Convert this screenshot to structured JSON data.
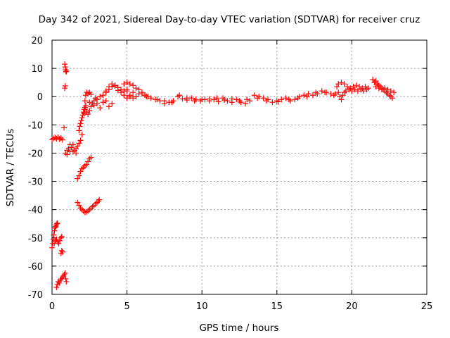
{
  "chart_data": {
    "type": "scatter",
    "title": "Day 342 of 2021, Sidereal Day-to-day VTEC variation (SDTVAR) for receiver cruz",
    "xlabel": "GPS time / hours",
    "ylabel": "SDTVAR / TECUs",
    "xlim": [
      0,
      25
    ],
    "ylim": [
      -70,
      20
    ],
    "xticks": [
      0,
      5,
      10,
      15,
      20,
      25
    ],
    "yticks": [
      20,
      10,
      0,
      -10,
      -20,
      -30,
      -40,
      -50,
      -60,
      -70
    ],
    "grid": true,
    "marker": "plus",
    "marker_color": "#ff0000",
    "series": [
      {
        "name": "SDTVAR",
        "points": [
          [
            0.0,
            -15.2
          ],
          [
            0.1,
            -14.8
          ],
          [
            0.2,
            -14.5
          ],
          [
            0.3,
            -14.9
          ],
          [
            0.4,
            -14.4
          ],
          [
            0.5,
            -15.0
          ],
          [
            0.6,
            -14.7
          ],
          [
            0.7,
            -15.3
          ],
          [
            0.0,
            -53.5
          ],
          [
            0.04,
            -52.0
          ],
          [
            0.08,
            -50.5
          ],
          [
            0.12,
            -49.0
          ],
          [
            0.16,
            -47.5
          ],
          [
            0.2,
            -46.5
          ],
          [
            0.24,
            -46.0
          ],
          [
            0.28,
            -45.5
          ],
          [
            0.32,
            -45.0
          ],
          [
            0.36,
            -44.8
          ],
          [
            0.15,
            -52.0
          ],
          [
            0.22,
            -51.0
          ],
          [
            0.3,
            -50.5
          ],
          [
            0.38,
            -51.5
          ],
          [
            0.45,
            -52.0
          ],
          [
            0.52,
            -51.0
          ],
          [
            0.6,
            -50.0
          ],
          [
            0.65,
            -49.5
          ],
          [
            0.3,
            -67.5
          ],
          [
            0.36,
            -66.5
          ],
          [
            0.42,
            -65.5
          ],
          [
            0.48,
            -66.0
          ],
          [
            0.55,
            -65.0
          ],
          [
            0.62,
            -64.5
          ],
          [
            0.7,
            -64.0
          ],
          [
            0.75,
            -63.5
          ],
          [
            0.82,
            -63.0
          ],
          [
            0.88,
            -62.5
          ],
          [
            0.92,
            -64.5
          ],
          [
            0.95,
            -65.5
          ],
          [
            0.6,
            -55.5
          ],
          [
            0.65,
            -54.5
          ],
          [
            0.7,
            -55.0
          ],
          [
            0.8,
            -11.0
          ],
          [
            0.85,
            3.0
          ],
          [
            0.88,
            3.8
          ],
          [
            0.85,
            11.5
          ],
          [
            0.88,
            10.5
          ],
          [
            0.9,
            9.5
          ],
          [
            0.93,
            8.8
          ],
          [
            0.96,
            9.0
          ],
          [
            0.9,
            -20.0
          ],
          [
            1.0,
            -19.0
          ],
          [
            1.1,
            -18.5
          ],
          [
            1.2,
            -19.5
          ],
          [
            1.3,
            -18.0
          ],
          [
            1.4,
            -17.0
          ],
          [
            1.5,
            -19.0
          ],
          [
            1.6,
            -18.5
          ],
          [
            1.7,
            -17.5
          ],
          [
            1.8,
            -16.5
          ],
          [
            1.9,
            -15.5
          ],
          [
            2.0,
            -13.5
          ],
          [
            1.0,
            -20.5
          ],
          [
            1.2,
            -17.0
          ],
          [
            1.4,
            -19.5
          ],
          [
            1.6,
            -20.0
          ],
          [
            1.7,
            -29.0
          ],
          [
            1.8,
            -28.0
          ],
          [
            1.9,
            -26.5
          ],
          [
            2.0,
            -25.5
          ],
          [
            2.1,
            -25.0
          ],
          [
            2.2,
            -24.5
          ],
          [
            2.3,
            -24.0
          ],
          [
            2.4,
            -23.0
          ],
          [
            2.5,
            -22.0
          ],
          [
            2.6,
            -21.5
          ],
          [
            1.7,
            -37.5
          ],
          [
            1.8,
            -38.5
          ],
          [
            1.9,
            -39.5
          ],
          [
            2.0,
            -40.0
          ],
          [
            2.1,
            -40.5
          ],
          [
            2.2,
            -41.0
          ],
          [
            2.3,
            -40.8
          ],
          [
            2.4,
            -40.5
          ],
          [
            2.5,
            -40.0
          ],
          [
            2.6,
            -39.5
          ],
          [
            2.7,
            -39.0
          ],
          [
            2.8,
            -38.5
          ],
          [
            2.9,
            -38.0
          ],
          [
            3.0,
            -37.5
          ],
          [
            3.1,
            -37.0
          ],
          [
            3.15,
            -36.5
          ],
          [
            1.8,
            -12.0
          ],
          [
            1.85,
            -10.5
          ],
          [
            1.9,
            -9.5
          ],
          [
            1.95,
            -8.5
          ],
          [
            2.0,
            -7.5
          ],
          [
            2.05,
            -6.5
          ],
          [
            2.1,
            -5.5
          ],
          [
            2.15,
            -4.5
          ],
          [
            2.2,
            -3.8
          ],
          [
            2.25,
            -3.2
          ],
          [
            2.15,
            -6.0
          ],
          [
            2.2,
            -4.5
          ],
          [
            2.3,
            -5.5
          ],
          [
            2.4,
            -6.2
          ],
          [
            2.5,
            -5.0
          ],
          [
            2.6,
            -3.5
          ],
          [
            2.7,
            -2.5
          ],
          [
            2.8,
            -1.5
          ],
          [
            2.9,
            -0.5
          ],
          [
            2.2,
            -1.5
          ],
          [
            2.25,
            0.5
          ],
          [
            2.3,
            1.5
          ],
          [
            2.4,
            1.2
          ],
          [
            2.5,
            1.5
          ],
          [
            2.6,
            0.8
          ],
          [
            2.5,
            -2.0
          ],
          [
            2.8,
            -3.0
          ],
          [
            3.0,
            -2.5
          ],
          [
            3.2,
            -4.0
          ],
          [
            3.4,
            -2.0
          ],
          [
            3.6,
            -1.5
          ],
          [
            3.8,
            -3.5
          ],
          [
            4.0,
            -2.5
          ],
          [
            3.0,
            -1.0
          ],
          [
            3.2,
            0.0
          ],
          [
            3.4,
            0.5
          ],
          [
            3.6,
            1.5
          ],
          [
            3.8,
            2.5
          ],
          [
            4.0,
            3.5
          ],
          [
            4.2,
            4.0
          ],
          [
            4.4,
            3.2
          ],
          [
            4.6,
            2.5
          ],
          [
            4.8,
            2.0
          ],
          [
            5.0,
            2.5
          ],
          [
            3.6,
            2.0
          ],
          [
            3.8,
            3.5
          ],
          [
            4.0,
            4.5
          ],
          [
            4.2,
            3.8
          ],
          [
            4.4,
            2.2
          ],
          [
            4.6,
            1.5
          ],
          [
            4.8,
            0.5
          ],
          [
            5.0,
            -0.5
          ],
          [
            5.2,
            0.0
          ],
          [
            5.4,
            1.5
          ],
          [
            4.8,
            4.5
          ],
          [
            5.0,
            5.0
          ],
          [
            5.2,
            4.5
          ],
          [
            5.4,
            4.0
          ],
          [
            5.6,
            3.0
          ],
          [
            5.8,
            2.5
          ],
          [
            6.0,
            1.5
          ],
          [
            6.2,
            0.5
          ],
          [
            6.4,
            0.0
          ],
          [
            5.0,
            2.0
          ],
          [
            5.2,
            0.5
          ],
          [
            5.4,
            -0.5
          ],
          [
            5.6,
            0.0
          ],
          [
            5.8,
            1.0
          ],
          [
            6.0,
            1.0
          ],
          [
            6.3,
            0.0
          ],
          [
            6.6,
            -0.5
          ],
          [
            6.9,
            -1.0
          ],
          [
            7.2,
            -1.5
          ],
          [
            7.5,
            -2.5
          ],
          [
            7.8,
            -2.0
          ],
          [
            8.1,
            -1.5
          ],
          [
            8.4,
            0.0
          ],
          [
            8.7,
            -0.8
          ],
          [
            9.0,
            -1.2
          ],
          [
            9.3,
            -0.5
          ],
          [
            9.6,
            -1.0
          ],
          [
            9.9,
            -1.5
          ],
          [
            10.2,
            -1.0
          ],
          [
            10.5,
            -1.5
          ],
          [
            10.8,
            -1.0
          ],
          [
            11.1,
            -1.8
          ],
          [
            11.4,
            -0.5
          ],
          [
            11.7,
            -1.5
          ],
          [
            12.0,
            -2.0
          ],
          [
            12.3,
            -1.0
          ],
          [
            12.6,
            -2.0
          ],
          [
            12.9,
            -2.5
          ],
          [
            13.2,
            -1.5
          ],
          [
            13.5,
            0.5
          ],
          [
            13.8,
            0.0
          ],
          [
            14.1,
            -0.5
          ],
          [
            14.4,
            -1.0
          ],
          [
            14.7,
            -2.0
          ],
          [
            15.0,
            -1.5
          ],
          [
            15.3,
            -1.0
          ],
          [
            15.6,
            -0.5
          ],
          [
            15.9,
            -1.5
          ],
          [
            16.2,
            -1.0
          ],
          [
            16.5,
            0.0
          ],
          [
            16.8,
            0.5
          ],
          [
            17.1,
            1.0
          ],
          [
            17.4,
            0.5
          ],
          [
            17.7,
            1.0
          ],
          [
            18.0,
            2.0
          ],
          [
            18.3,
            1.5
          ],
          [
            18.6,
            1.0
          ],
          [
            18.9,
            1.0
          ],
          [
            7.0,
            -1.0
          ],
          [
            7.5,
            -1.5
          ],
          [
            8.0,
            -2.0
          ],
          [
            8.5,
            0.5
          ],
          [
            9.0,
            -0.5
          ],
          [
            9.5,
            -1.5
          ],
          [
            10.0,
            -1.0
          ],
          [
            10.5,
            -0.8
          ],
          [
            11.0,
            -0.5
          ],
          [
            11.5,
            -1.2
          ],
          [
            12.0,
            -0.8
          ],
          [
            12.5,
            -1.5
          ],
          [
            13.0,
            -1.0
          ],
          [
            13.7,
            -0.5
          ],
          [
            14.3,
            -1.5
          ],
          [
            15.1,
            -1.8
          ],
          [
            15.8,
            -1.0
          ],
          [
            16.4,
            -0.5
          ],
          [
            17.0,
            0.0
          ],
          [
            17.6,
            1.5
          ],
          [
            18.2,
            1.5
          ],
          [
            18.8,
            0.5
          ],
          [
            19.0,
            3.5
          ],
          [
            19.1,
            4.5
          ],
          [
            19.3,
            5.0
          ],
          [
            19.5,
            4.5
          ],
          [
            19.7,
            3.5
          ],
          [
            19.9,
            3.0
          ],
          [
            20.1,
            3.5
          ],
          [
            20.3,
            4.0
          ],
          [
            20.5,
            3.5
          ],
          [
            20.7,
            3.0
          ],
          [
            20.9,
            3.5
          ],
          [
            21.1,
            3.0
          ],
          [
            19.1,
            1.5
          ],
          [
            19.2,
            0.0
          ],
          [
            19.3,
            -1.0
          ],
          [
            19.4,
            0.5
          ],
          [
            19.5,
            1.5
          ],
          [
            19.6,
            2.0
          ],
          [
            19.8,
            2.5
          ],
          [
            20.0,
            2.0
          ],
          [
            20.2,
            2.5
          ],
          [
            20.4,
            2.0
          ],
          [
            20.6,
            2.5
          ],
          [
            20.8,
            2.0
          ],
          [
            21.0,
            2.5
          ],
          [
            21.4,
            6.0
          ],
          [
            21.5,
            5.0
          ],
          [
            21.6,
            5.5
          ],
          [
            21.7,
            4.5
          ],
          [
            21.8,
            4.0
          ],
          [
            21.9,
            3.5
          ],
          [
            22.0,
            3.0
          ],
          [
            22.1,
            2.5
          ],
          [
            22.2,
            2.0
          ],
          [
            22.3,
            1.5
          ],
          [
            22.4,
            1.0
          ],
          [
            22.5,
            0.5
          ],
          [
            22.6,
            0.0
          ],
          [
            22.7,
            -0.5
          ],
          [
            21.6,
            3.5
          ],
          [
            21.8,
            3.0
          ],
          [
            22.0,
            2.5
          ],
          [
            22.2,
            3.0
          ],
          [
            22.4,
            2.5
          ],
          [
            22.6,
            2.0
          ],
          [
            22.8,
            1.5
          ]
        ]
      }
    ]
  }
}
